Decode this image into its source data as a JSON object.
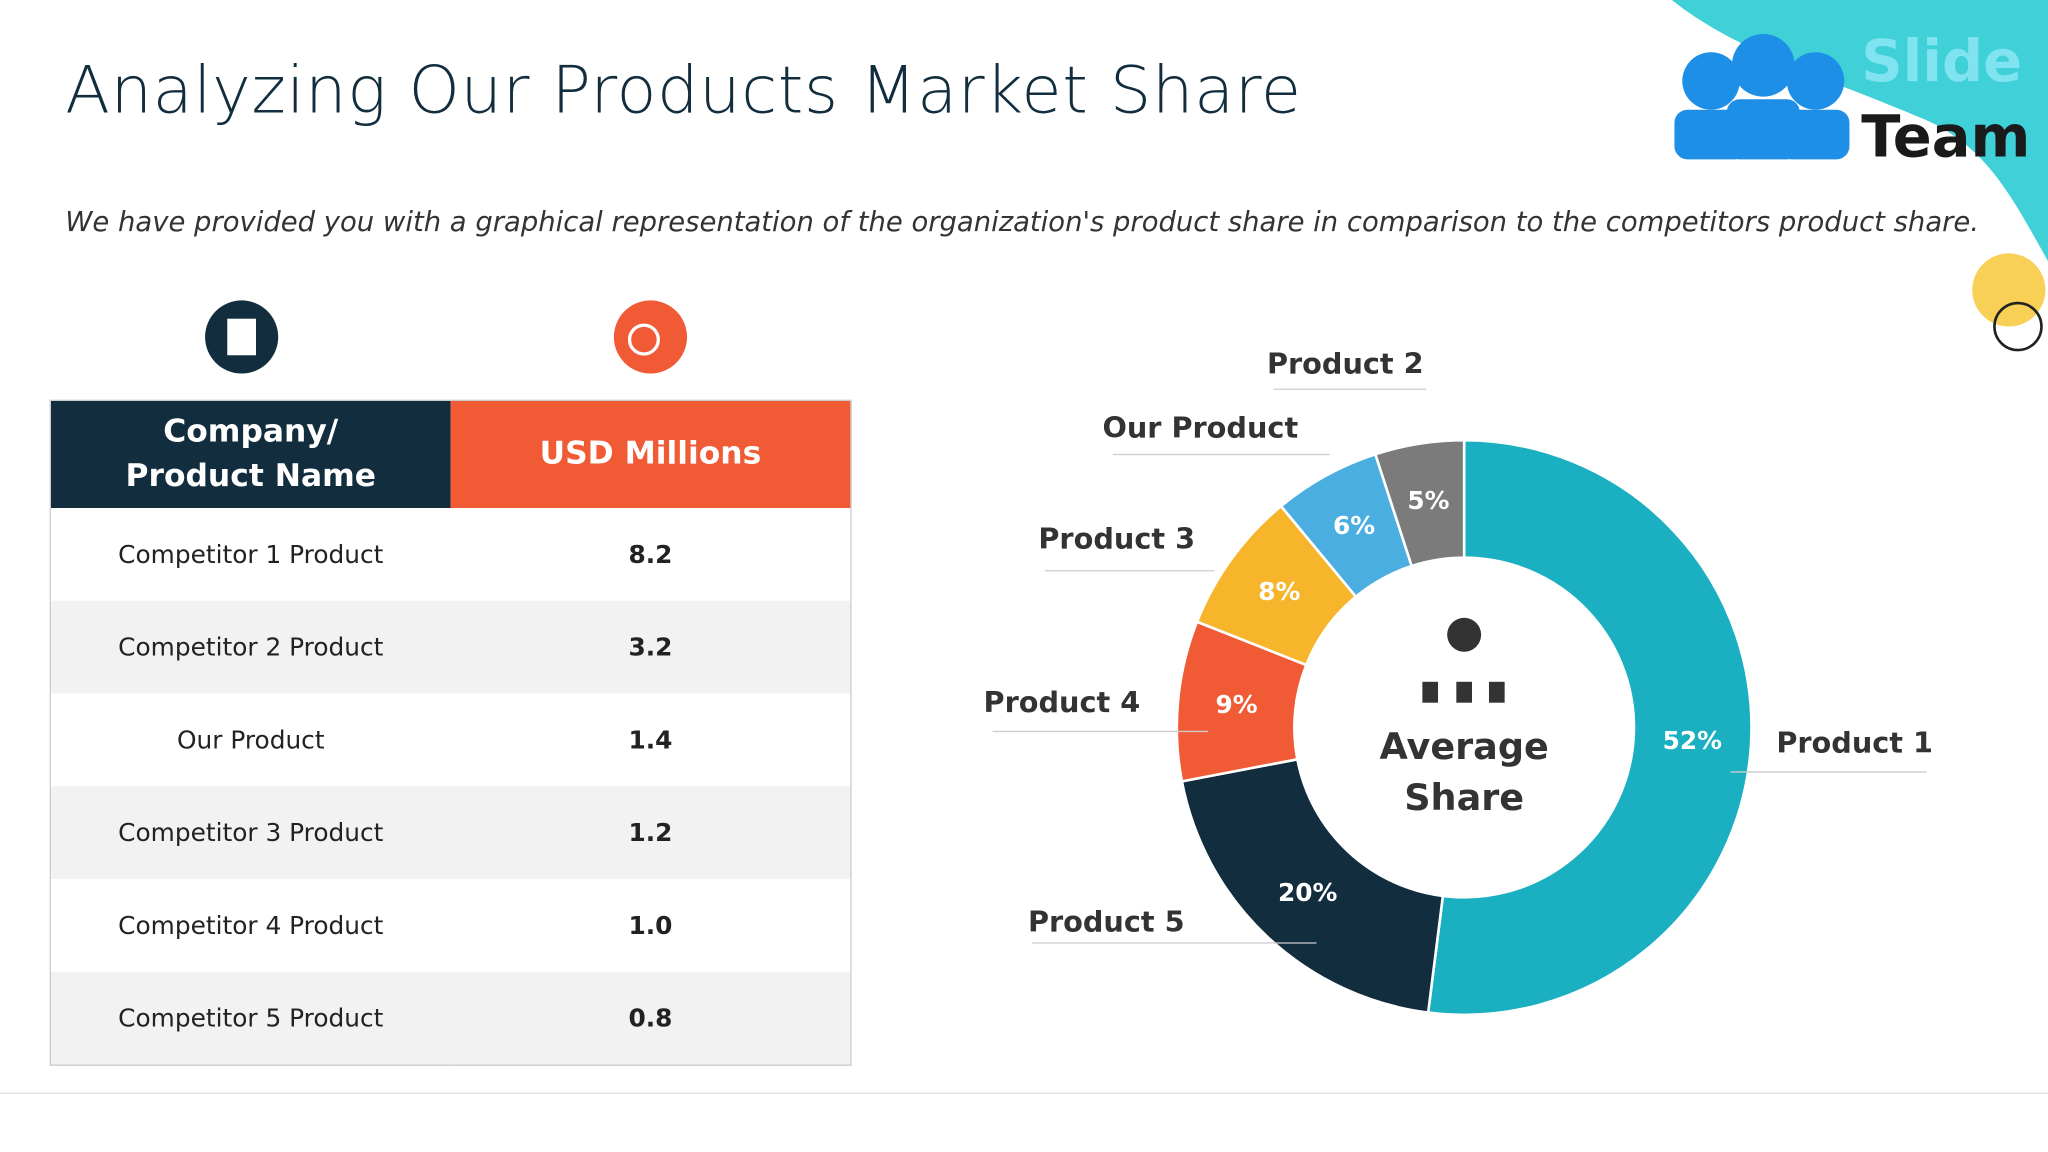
{
  "header": {
    "title": "Analyzing Our Products Market Share",
    "subtitle": "We have provided you with a graphical representation of the organization's product share in comparison to the competitors product share.",
    "logo": [
      "Slide",
      "Team"
    ]
  },
  "table": {
    "columns": [
      "Company/ Product Name",
      "USD Millions"
    ],
    "rows": [
      [
        "Competitor 1 Product",
        "8.2"
      ],
      [
        "Competitor 2 Product",
        "3.2"
      ],
      [
        "Our Product",
        "1.4"
      ],
      [
        "Competitor 3 Product",
        "1.2"
      ],
      [
        "Competitor 4 Product",
        "1.0"
      ],
      [
        "Competitor 5 Product",
        "0.8"
      ]
    ]
  },
  "chart_data": {
    "type": "donut",
    "center_label": "Average Share",
    "categories": [
      "Product 1",
      "Product 5",
      "Product 4",
      "Product 3",
      "Our Product",
      "Product 2"
    ],
    "values": [
      52,
      20,
      9,
      8,
      6,
      5
    ],
    "value_labels": [
      "52%",
      "20%",
      "9%",
      "8%",
      "6%",
      "5%"
    ],
    "colors": [
      "#1bb0c1",
      "#122d3e",
      "#f05a35",
      "#f7b52c",
      "#4aaee0",
      "#7b7b7b"
    ]
  }
}
